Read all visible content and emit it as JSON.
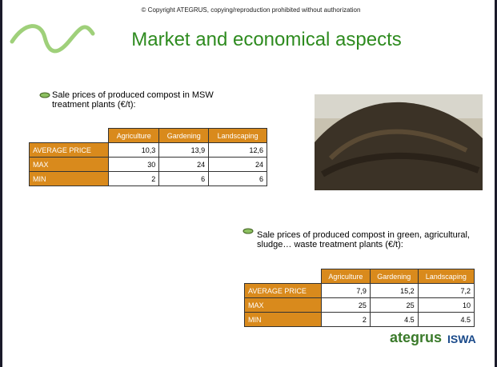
{
  "header": {
    "copyright": "© Copyright ATEGRUS, copying/reproduction prohibited without authorization",
    "title": "Market and economical aspects"
  },
  "section1": {
    "bullet": "Sale prices of produced compost in MSW treatment plants (€/t):",
    "table": {
      "columns": [
        "Agriculture",
        "Gardening",
        "Landscaping"
      ],
      "rows": [
        [
          "AVERAGE PRICE",
          "10,3",
          "13,9",
          "12,6"
        ],
        [
          "MAX",
          "30",
          "24",
          "24"
        ],
        [
          "MIN",
          "2",
          "6",
          "6"
        ]
      ]
    }
  },
  "section2": {
    "bullet": "Sale prices of produced compost in green, agricultural, sludge… waste treatment plants (€/t):",
    "table": {
      "columns": [
        "Agriculture",
        "Gardening",
        "Landscaping"
      ],
      "rows": [
        [
          "AVERAGE PRICE",
          "7,9",
          "15,2",
          "7,2"
        ],
        [
          "MAX",
          "25",
          "25",
          "10"
        ],
        [
          "MIN",
          "2",
          "4.5",
          "4.5"
        ]
      ]
    }
  },
  "logos": {
    "ategrus": "ategrus",
    "iswa": "ISWA"
  }
}
